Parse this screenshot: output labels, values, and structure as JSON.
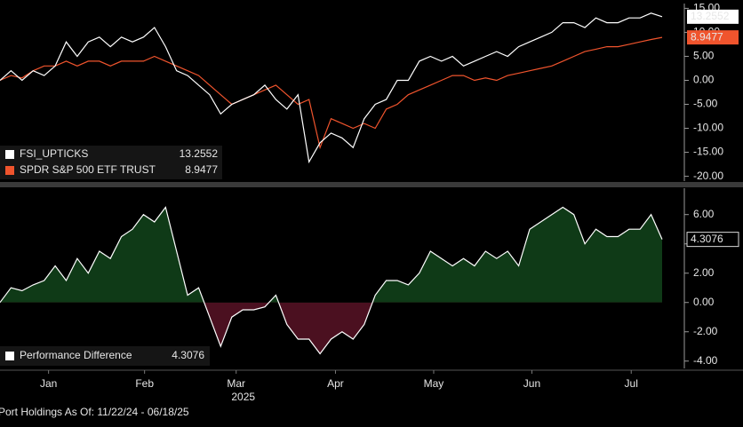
{
  "chart_data": [
    {
      "type": "line",
      "series": [
        {
          "name": "FSI_UPTICKS",
          "color": "#ffffff",
          "values": [
            0,
            2,
            0,
            2,
            1,
            3,
            8,
            5,
            8,
            9,
            7,
            9,
            8,
            9,
            11,
            7,
            2,
            1,
            -1,
            -3,
            -7,
            -5,
            -4,
            -3,
            -1,
            -4,
            -6,
            -3,
            -17,
            -13,
            -11,
            -12,
            -14,
            -8,
            -5,
            -4,
            0,
            0,
            4,
            5,
            4,
            5,
            3,
            4,
            5,
            6,
            5,
            7,
            8,
            9,
            10,
            12,
            12,
            11,
            13,
            12,
            12,
            13,
            13,
            14,
            13.2552
          ]
        },
        {
          "name": "SPDR S&P 500 ETF TRUST",
          "color": "#f0542d",
          "values": [
            0,
            1,
            0.5,
            2,
            3,
            3,
            4,
            3,
            4,
            4,
            3,
            4,
            4,
            4,
            5,
            4,
            3,
            2,
            1,
            -1,
            -3,
            -5,
            -4,
            -3,
            -2,
            -1,
            -3,
            -5,
            -4,
            -14,
            -8,
            -9,
            -10,
            -9,
            -10,
            -6,
            -5,
            -3,
            -2,
            -1,
            0,
            1,
            1,
            0,
            0.5,
            0,
            1,
            1.5,
            2,
            2.5,
            3,
            4,
            5,
            6,
            6.5,
            7,
            7,
            7.5,
            8,
            8.5,
            8.9477
          ]
        }
      ],
      "xlim": [
        0,
        60
      ],
      "ylim": [
        -21,
        16
      ],
      "yticks": [
        {
          "value": 15,
          "label": "15.00"
        },
        {
          "value": 10,
          "label": "10.00"
        },
        {
          "value": 5,
          "label": "5.00"
        },
        {
          "value": 0,
          "label": "0.00"
        },
        {
          "value": -5,
          "label": "-5.00"
        },
        {
          "value": -10,
          "label": "-10.00"
        },
        {
          "value": -15,
          "label": "-15.00"
        },
        {
          "value": -20,
          "label": "-20.00"
        }
      ],
      "legend": "lower left"
    },
    {
      "type": "area",
      "series": [
        {
          "name": "Performance Difference",
          "color": "#ffffff",
          "positive_fill": "#0f3a17",
          "negative_fill": "#4b1020",
          "values": [
            0,
            1.0,
            0.8,
            1.2,
            1.5,
            2.5,
            1.5,
            3.0,
            2.0,
            3.5,
            3.0,
            4.5,
            5.0,
            6.0,
            5.5,
            6.5,
            3.5,
            0.5,
            1.0,
            -1.0,
            -3.0,
            -1.0,
            -0.5,
            -0.5,
            -0.3,
            0.5,
            -1.5,
            -2.5,
            -2.5,
            -3.5,
            -2.5,
            -2.0,
            -2.5,
            -1.5,
            0.5,
            1.5,
            1.5,
            1.2,
            2.0,
            3.5,
            3.0,
            2.5,
            3.0,
            2.5,
            3.5,
            3.0,
            3.5,
            2.5,
            5.0,
            5.5,
            6.0,
            6.5,
            6.0,
            4.0,
            5.0,
            4.5,
            4.5,
            5.0,
            5.0,
            6.0,
            4.3076
          ]
        }
      ],
      "xlim": [
        0,
        60
      ],
      "xticks": [
        {
          "value": 4.4,
          "label": "Jan"
        },
        {
          "value": 13.1,
          "label": "Feb"
        },
        {
          "value": 21.4,
          "label": "Mar"
        },
        {
          "value": 30.4,
          "label": "Apr"
        },
        {
          "value": 39.3,
          "label": "May"
        },
        {
          "value": 48.2,
          "label": "Jun"
        },
        {
          "value": 57.2,
          "label": "Jul"
        }
      ],
      "x_label": "2025",
      "ylim": [
        -4.5,
        7.8
      ],
      "yticks": [
        {
          "value": 6,
          "label": "6.00"
        },
        {
          "value": 4,
          "label": "4.00"
        },
        {
          "value": 2,
          "label": "2.00"
        },
        {
          "value": 0,
          "label": "0.00"
        },
        {
          "value": -2,
          "label": "-2.00"
        },
        {
          "value": -4,
          "label": "-4.00"
        }
      ],
      "legend": "lower left",
      "footnote": "Port Holdings As Of: 11/22/24 - 06/18/25"
    }
  ]
}
